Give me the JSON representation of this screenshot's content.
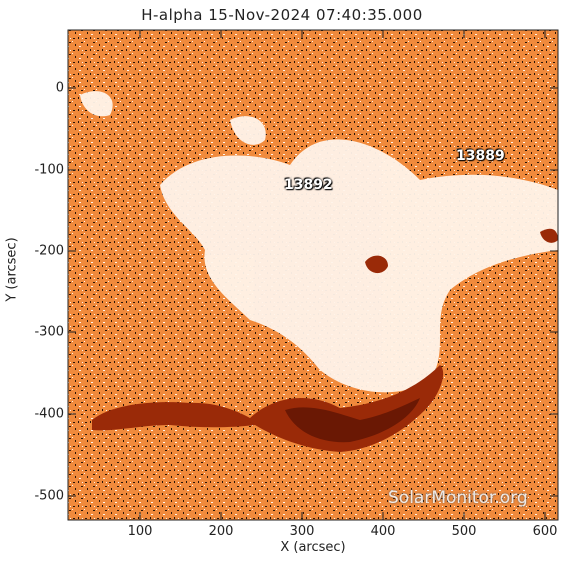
{
  "title": "H-alpha 15-Nov-2024 07:40:35.000",
  "xlabel": "X (arcsec)",
  "ylabel": "Y (arcsec)",
  "xticks": [
    "100",
    "200",
    "300",
    "400",
    "500",
    "600"
  ],
  "yticks": [
    "0",
    "-100",
    "-200",
    "-300",
    "-400",
    "-500"
  ],
  "regions": [
    {
      "label": "13892"
    },
    {
      "label": "13889"
    }
  ],
  "watermark": "SolarMonitor.org",
  "colors": {
    "background": "#f08a3c",
    "plage": "#fff4ea",
    "speckle": "#2a1406",
    "ribbon": "#9a2a08",
    "ribbon_core": "#6a1804"
  }
}
